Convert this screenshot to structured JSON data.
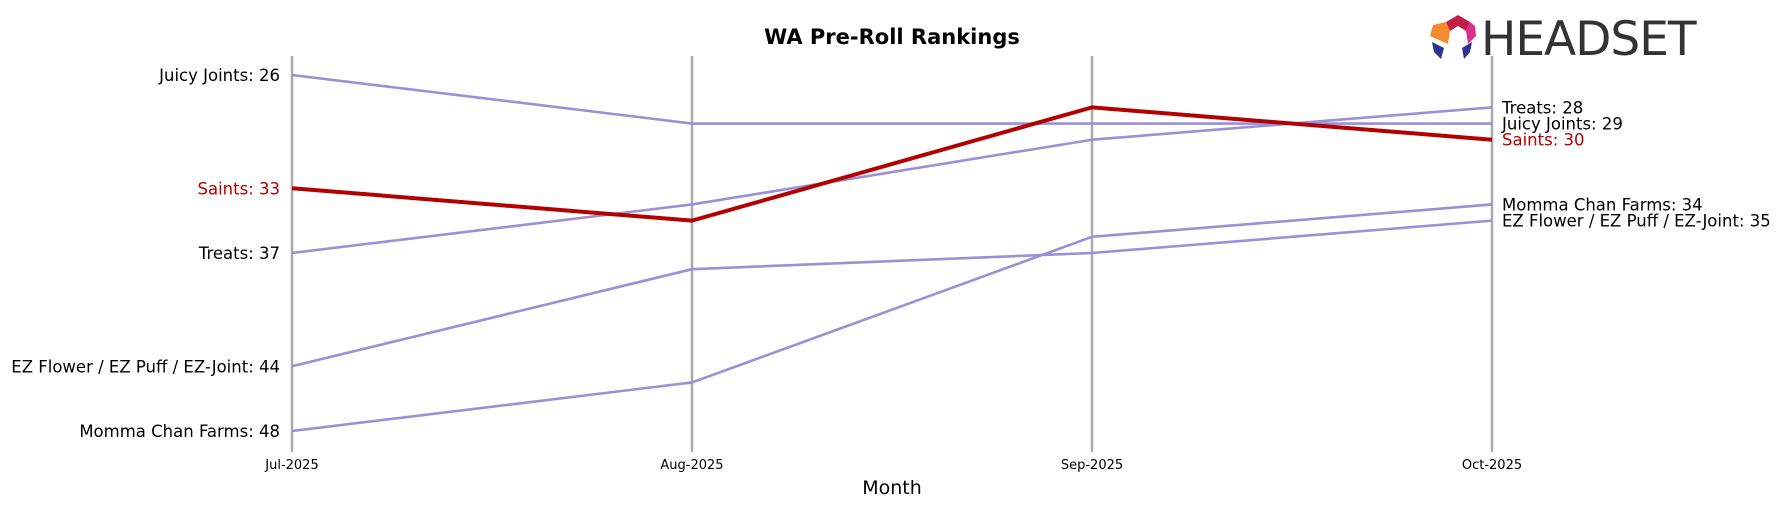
{
  "logo": {
    "text": "HEADSET"
  },
  "colors": {
    "highlight": "#b30000",
    "other": "#9b8fd8",
    "gridline": "#aaaaaa"
  },
  "chart_data": {
    "type": "line",
    "chart_kind": "bump",
    "title": "WA Pre-Roll Rankings",
    "xlabel": "Month",
    "ylabel": "",
    "x": [
      "Jul-2025",
      "Aug-2025",
      "Sep-2025",
      "Oct-2025"
    ],
    "y_inverted": true,
    "grid": "vertical lines at each month",
    "legend": "none",
    "highlight_series": "Saints",
    "series": [
      {
        "name": "Juicy Joints",
        "values": [
          26,
          29,
          29,
          29
        ],
        "start_label": "Juicy Joints: 26",
        "end_label": "Juicy Joints: 29"
      },
      {
        "name": "Saints",
        "values": [
          33,
          35,
          28,
          30
        ],
        "start_label": "Saints: 33",
        "end_label": "Saints: 30"
      },
      {
        "name": "Treats",
        "values": [
          37,
          34,
          30,
          28
        ],
        "start_label": "Treats: 37",
        "end_label": "Treats: 28"
      },
      {
        "name": "EZ Flower / EZ Puff / EZ-Joint",
        "values": [
          44,
          38,
          37,
          35
        ],
        "start_label": "EZ Flower / EZ Puff / EZ-Joint: 44",
        "end_label": "EZ Flower / EZ Puff / EZ-Joint: 35"
      },
      {
        "name": "Momma Chan Farms",
        "values": [
          48,
          45,
          36,
          34
        ],
        "start_label": "Momma Chan Farms: 48",
        "end_label": "Momma Chan Farms: 34"
      }
    ]
  }
}
